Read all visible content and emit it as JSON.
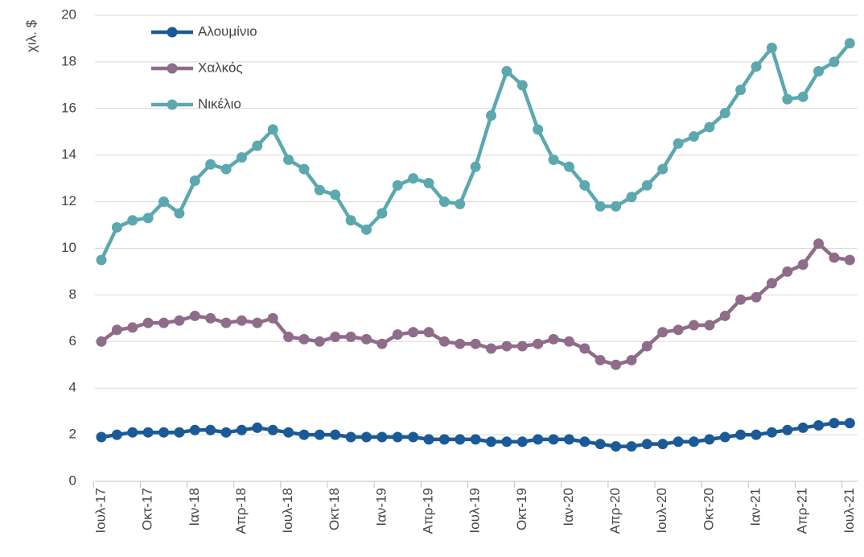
{
  "chart_data": {
    "type": "line",
    "ylabel": "χιλ. $",
    "categories": [
      "Ιουλ-17",
      null,
      null,
      "Οκτ-17",
      null,
      null,
      "Ιαν-18",
      null,
      null,
      "Απρ-18",
      null,
      null,
      "Ιουλ-18",
      null,
      null,
      "Οκτ-18",
      null,
      null,
      "Ιαν-19",
      null,
      null,
      "Απρ-19",
      null,
      null,
      "Ιουλ-19",
      null,
      null,
      "Οκτ-19",
      null,
      null,
      "Ιαν-20",
      null,
      null,
      "Απρ-20",
      null,
      null,
      "Ιουλ-20",
      null,
      null,
      "Οκτ-20",
      null,
      null,
      "Ιαν-21",
      null,
      null,
      "Απρ-21",
      null,
      null,
      "Ιουλ-21"
    ],
    "series": [
      {
        "name": "Αλουμίνιο",
        "color": "#1b5a96",
        "values": [
          1.9,
          2.0,
          2.1,
          2.1,
          2.1,
          2.1,
          2.2,
          2.2,
          2.1,
          2.2,
          2.3,
          2.2,
          2.1,
          2.0,
          2.0,
          2.0,
          1.9,
          1.9,
          1.9,
          1.9,
          1.9,
          1.8,
          1.8,
          1.8,
          1.8,
          1.7,
          1.7,
          1.7,
          1.8,
          1.8,
          1.8,
          1.7,
          1.6,
          1.5,
          1.5,
          1.6,
          1.6,
          1.7,
          1.7,
          1.8,
          1.9,
          2.0,
          2.0,
          2.1,
          2.2,
          2.3,
          2.4,
          2.5,
          2.5
        ]
      },
      {
        "name": "Χαλκός",
        "color": "#8e6c8a",
        "values": [
          6.0,
          6.5,
          6.6,
          6.8,
          6.8,
          6.9,
          7.1,
          7.0,
          6.8,
          6.9,
          6.8,
          7.0,
          6.2,
          6.1,
          6.0,
          6.2,
          6.2,
          6.1,
          5.9,
          6.3,
          6.4,
          6.4,
          6.0,
          5.9,
          5.9,
          5.7,
          5.8,
          5.8,
          5.9,
          6.1,
          6.0,
          5.7,
          5.2,
          5.0,
          5.2,
          5.8,
          6.4,
          6.5,
          6.7,
          6.7,
          7.1,
          7.8,
          7.9,
          8.5,
          9.0,
          9.3,
          10.2,
          9.6,
          9.5
        ]
      },
      {
        "name": "Νικέλιο",
        "color": "#5ba8ae",
        "values": [
          9.5,
          10.9,
          11.2,
          11.3,
          12.0,
          11.5,
          12.9,
          13.6,
          13.4,
          13.9,
          14.4,
          15.1,
          13.8,
          13.4,
          12.5,
          12.3,
          11.2,
          10.8,
          11.5,
          12.7,
          13.0,
          12.8,
          12.0,
          11.9,
          13.5,
          15.7,
          17.6,
          17.0,
          15.1,
          13.8,
          13.5,
          12.7,
          11.8,
          11.8,
          12.2,
          12.7,
          13.4,
          14.5,
          14.8,
          15.2,
          15.8,
          16.8,
          17.8,
          18.6,
          16.4,
          16.5,
          17.6,
          18.0,
          18.8
        ]
      }
    ],
    "ylim": [
      0,
      20
    ],
    "yticks": [
      0,
      2,
      4,
      6,
      8,
      10,
      12,
      14,
      16,
      18,
      20
    ],
    "grid": true
  }
}
